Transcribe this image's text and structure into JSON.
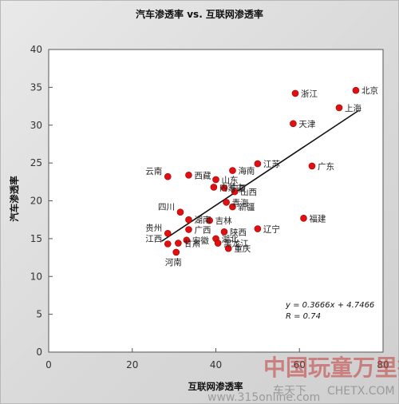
{
  "chart_data": {
    "type": "scatter",
    "title": "汽车渗透率 vs. 互联网渗透率",
    "xlabel": "互联网渗透率",
    "ylabel": "汽车渗透率",
    "xlim": [
      0,
      80
    ],
    "ylim": [
      0,
      40
    ],
    "xticks": [
      0,
      20,
      40,
      60,
      80
    ],
    "yticks": [
      0,
      5,
      10,
      15,
      20,
      25,
      30,
      35,
      40
    ],
    "grid": false,
    "marker_color": "#e01010",
    "points": [
      {
        "name": "北京",
        "x": 73.5,
        "y": 34.6
      },
      {
        "name": "浙江",
        "x": 59.0,
        "y": 34.2
      },
      {
        "name": "上海",
        "x": 69.5,
        "y": 32.3
      },
      {
        "name": "天津",
        "x": 58.5,
        "y": 30.2
      },
      {
        "name": "江苏",
        "x": 50.0,
        "y": 24.9
      },
      {
        "name": "广东",
        "x": 63.0,
        "y": 24.6
      },
      {
        "name": "云南",
        "x": 28.5,
        "y": 23.2
      },
      {
        "name": "西藏",
        "x": 33.5,
        "y": 23.4
      },
      {
        "name": "山东",
        "x": 40.0,
        "y": 22.8
      },
      {
        "name": "海南",
        "x": 44.0,
        "y": 24.0
      },
      {
        "name": "内蒙古",
        "x": 39.5,
        "y": 21.8
      },
      {
        "name": "宁夏",
        "x": 42.0,
        "y": 21.7
      },
      {
        "name": "山西",
        "x": 44.5,
        "y": 21.2
      },
      {
        "name": "青海",
        "x": 42.5,
        "y": 19.8
      },
      {
        "name": "新疆",
        "x": 44.0,
        "y": 19.2
      },
      {
        "name": "四川",
        "x": 31.5,
        "y": 18.5
      },
      {
        "name": "湖南",
        "x": 33.5,
        "y": 17.5
      },
      {
        "name": "吉林",
        "x": 38.5,
        "y": 17.4
      },
      {
        "name": "贵州",
        "x": 28.5,
        "y": 15.7
      },
      {
        "name": "广西",
        "x": 33.5,
        "y": 16.2
      },
      {
        "name": "陕西",
        "x": 42.0,
        "y": 15.9
      },
      {
        "name": "辽宁",
        "x": 50.0,
        "y": 16.3
      },
      {
        "name": "福建",
        "x": 61.0,
        "y": 17.7
      },
      {
        "name": "安徽",
        "x": 33.0,
        "y": 14.8
      },
      {
        "name": "湖北",
        "x": 40.0,
        "y": 15.0
      },
      {
        "name": "江西",
        "x": 28.5,
        "y": 14.3
      },
      {
        "name": "甘肃",
        "x": 31.0,
        "y": 14.4
      },
      {
        "name": "黑龙江",
        "x": 40.5,
        "y": 14.4
      },
      {
        "name": "重庆",
        "x": 43.0,
        "y": 13.7
      },
      {
        "name": "河南",
        "x": 30.5,
        "y": 13.2
      }
    ],
    "trendline": {
      "slope": 0.3666,
      "intercept": 4.7466,
      "x_range": [
        27,
        74
      ],
      "equation": "y = 0.3666x + 4.7466",
      "r": "R = 0.74"
    }
  },
  "watermark": {
    "brand": "中国玩童万里行",
    "site": "CHETX.COM",
    "url": "www.315online.com",
    "source": "车天下"
  }
}
